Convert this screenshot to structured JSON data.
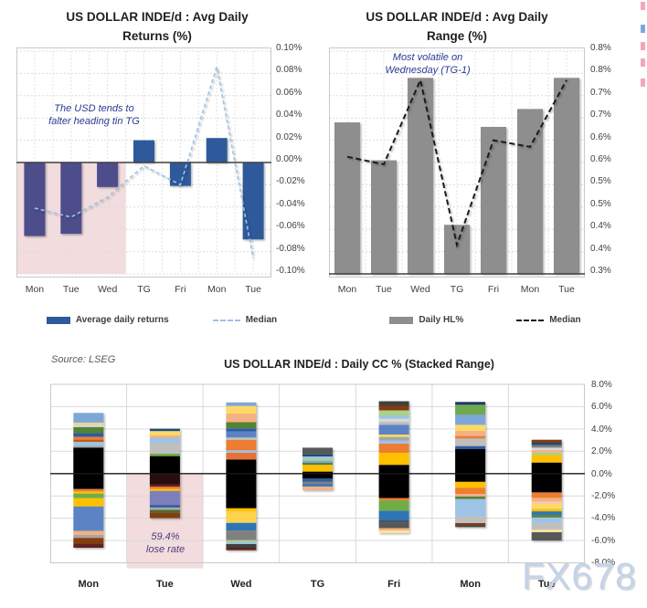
{
  "page": {
    "watermark": "FX678",
    "source_note": "Source: LSEG",
    "artifact_marks": [
      {
        "y": 2,
        "color": "#f2a7be"
      },
      {
        "y": 27,
        "color": "#7fa8d9"
      },
      {
        "y": 46,
        "color": "#f2a7be"
      },
      {
        "y": 64,
        "color": "#f2a7be"
      },
      {
        "y": 86,
        "color": "#f2a7be"
      }
    ]
  },
  "chart_data": [
    {
      "type": "bar",
      "title": "US DOLLAR INDE/d : Avg Daily Returns (%)",
      "title_lines": [
        "US DOLLAR INDE/d : Avg Daily",
        "Returns (%)"
      ],
      "categories": [
        "Mon",
        "Tue",
        "Wed",
        "TG",
        "Fri",
        "Mon",
        "Tue"
      ],
      "series": [
        {
          "name": "Average daily returns",
          "type": "bar",
          "color": "#2d5a9b",
          "highlight_color": "#4e4d8c",
          "values": [
            -0.066,
            -0.064,
            -0.022,
            0.02,
            -0.021,
            0.022,
            -0.069
          ]
        },
        {
          "name": "Median",
          "type": "line",
          "color": "#9dc3e6",
          "values": [
            -0.041,
            -0.049,
            -0.031,
            -0.003,
            -0.02,
            0.086,
            -0.086
          ]
        }
      ],
      "ylim": [
        -0.1,
        0.1
      ],
      "tick_labels": [
        "0.10%",
        "0.08%",
        "0.06%",
        "0.04%",
        "0.02%",
        "0.00%",
        "-0.02%",
        "-0.04%",
        "-0.06%",
        "-0.08%",
        "-0.10%"
      ],
      "grid": true,
      "legend_position": "bottom",
      "annotation": {
        "lines": [
          "The USD tends to",
          "falter heading tin TG"
        ]
      },
      "highlight": {
        "categories": [
          "Mon",
          "Tue",
          "Wed"
        ],
        "region": "below zero",
        "color": "#f2dcde"
      },
      "legend": [
        {
          "label": "Average daily returns",
          "swatch": "bar",
          "color": "#2d5a9b"
        },
        {
          "label": "Median",
          "swatch": "dash",
          "color": "#9dc3e6"
        }
      ]
    },
    {
      "type": "bar",
      "title": "US DOLLAR INDE/d : Avg Daily Range (%)",
      "title_lines": [
        "US DOLLAR INDE/d : Avg Daily",
        "Range (%)"
      ],
      "categories": [
        "Mon",
        "Tue",
        "Wed",
        "TG",
        "Fri",
        "Mon",
        "Tue"
      ],
      "series": [
        {
          "name": "Daily HL%",
          "type": "bar",
          "color": "#8e8e8e",
          "values": [
            0.64,
            0.555,
            0.74,
            0.41,
            0.63,
            0.67,
            0.74
          ]
        },
        {
          "name": "Median",
          "type": "line",
          "color": "#1a1a1a",
          "values": [
            0.563,
            0.546,
            0.735,
            0.365,
            0.6,
            0.585,
            0.735
          ]
        }
      ],
      "ylim": [
        0.3,
        0.8
      ],
      "tick_labels": [
        "0.8%",
        "0.8%",
        "0.7%",
        "0.7%",
        "0.6%",
        "0.6%",
        "0.5%",
        "0.5%",
        "0.4%",
        "0.4%",
        "0.3%"
      ],
      "grid": true,
      "legend_position": "bottom",
      "annotation": {
        "lines": [
          "Most volatile on",
          "Wednesday (TG-1)"
        ]
      },
      "legend": [
        {
          "label": "Daily HL%",
          "swatch": "bar",
          "color": "#8e8e8e"
        },
        {
          "label": "Median",
          "swatch": "dash",
          "color": "#1a1a1a"
        }
      ]
    },
    {
      "type": "bar",
      "subtype": "stacked-range",
      "title": "US DOLLAR INDE/d : Daily CC % (Stacked Range)",
      "categories": [
        "Mon",
        "Tue",
        "Wed",
        "TG",
        "Fri",
        "Mon",
        "Tue"
      ],
      "ylim": [
        -8,
        8
      ],
      "tick_labels": [
        "8.0%",
        "6.0%",
        "4.0%",
        "2.0%",
        "0.0%",
        "-2.0%",
        "-4.0%",
        "-6.0%",
        "-8.0%"
      ],
      "grid": true,
      "annotation": {
        "lines": [
          "59.4%",
          "lose rate"
        ]
      },
      "highlight": {
        "categories": [
          "Tue"
        ],
        "region": "below zero",
        "color": "#f2dcde"
      },
      "bars": [
        {
          "label": "Mon",
          "top": 5.44,
          "bottom": -6.65,
          "segments": [
            [
              "#7da7d9",
              0.87
            ],
            [
              "#e6d690",
              0.22
            ],
            [
              "#d9d9d9",
              0.19
            ],
            [
              "#548235",
              0.55
            ],
            [
              "#2e5c9e",
              0.33
            ],
            [
              "#ed7d31",
              0.25
            ],
            [
              "#c55a11",
              0.19
            ],
            [
              "#9dc3e6",
              0.36
            ],
            [
              "#a6a6a6",
              0.16
            ],
            [
              "#000000",
              3.71
            ],
            [
              "#ed7d31",
              0.22
            ],
            [
              "#ffc000",
              0.19
            ],
            [
              "#70ad47",
              0.41
            ],
            [
              "#ffc000",
              0.74
            ],
            [
              "#5b84c4",
              2.19
            ],
            [
              "#f4b183",
              0.36
            ],
            [
              "#a6a6a6",
              0.27
            ],
            [
              "#843c0c",
              0.52
            ],
            [
              "#632423",
              0.36
            ]
          ]
        },
        {
          "label": "Tue",
          "top": 4.02,
          "bottom": -3.99,
          "segments": [
            [
              "#1f4e79",
              0.22
            ],
            [
              "#ffd966",
              0.38
            ],
            [
              "#f4b183",
              0.22
            ],
            [
              "#9dc3e6",
              0.44
            ],
            [
              "#bfbfbf",
              0.98
            ],
            [
              "#70ad47",
              0.22
            ],
            [
              "#000000",
              1.56
            ],
            [
              "#2b0b0b",
              0.96
            ],
            [
              "#632423",
              0.22
            ],
            [
              "#ed7d31",
              0.19
            ],
            [
              "#ffc000",
              0.19
            ],
            [
              "#7c7fbc",
              1.26
            ],
            [
              "#2e5c9e",
              0.22
            ],
            [
              "#a6a6a6",
              0.22
            ],
            [
              "#4e6b2f",
              0.27
            ],
            [
              "#843c0c",
              0.46
            ]
          ]
        },
        {
          "label": "Wed",
          "top": 6.38,
          "bottom": -6.87,
          "segments": [
            [
              "#7da7d9",
              0.33
            ],
            [
              "#ffd966",
              0.68
            ],
            [
              "#f4b183",
              0.77
            ],
            [
              "#548235",
              0.55
            ],
            [
              "#2e5c9e",
              0.27
            ],
            [
              "#5b84c4",
              0.55
            ],
            [
              "#bfbfbf",
              0.22
            ],
            [
              "#ed7d31",
              0.93
            ],
            [
              "#9dc3e6",
              0.22
            ],
            [
              "#e97132",
              0.6
            ],
            [
              "#000000",
              4.37
            ],
            [
              "#ffc000",
              0.27
            ],
            [
              "#ffd34d",
              1.04
            ],
            [
              "#2e75b6",
              0.68
            ],
            [
              "#808080",
              0.87
            ],
            [
              "#a9d18e",
              0.19
            ],
            [
              "#9dc3e6",
              0.16
            ],
            [
              "#404040",
              0.33
            ],
            [
              "#632423",
              0.22
            ]
          ]
        },
        {
          "label": "TG",
          "top": 2.32,
          "bottom": -1.5,
          "segments": [
            [
              "#595959",
              0.6
            ],
            [
              "#1f4e79",
              0.19
            ],
            [
              "#9dc3e6",
              0.19
            ],
            [
              "#a9d18e",
              0.19
            ],
            [
              "#7da7d9",
              0.19
            ],
            [
              "#548235",
              0.19
            ],
            [
              "#ffc000",
              0.6
            ],
            [
              "#000000",
              0.62
            ],
            [
              "#2e5c9e",
              0.27
            ],
            [
              "#808080",
              0.22
            ],
            [
              "#2e75b6",
              0.22
            ],
            [
              "#f4b183",
              0.33
            ]
          ]
        },
        {
          "label": "Fri",
          "top": 6.49,
          "bottom": -5.33,
          "segments": [
            [
              "#404040",
              0.41
            ],
            [
              "#843c0c",
              0.41
            ],
            [
              "#a9d18e",
              0.49
            ],
            [
              "#9dc3e6",
              0.27
            ],
            [
              "#d9d9d9",
              0.27
            ],
            [
              "#bfbfbf",
              0.27
            ],
            [
              "#5b84c4",
              0.87
            ],
            [
              "#ffd966",
              0.22
            ],
            [
              "#a6a6a6",
              0.33
            ],
            [
              "#9dc3e6",
              0.27
            ],
            [
              "#ed7d31",
              0.82
            ],
            [
              "#ffc000",
              1.09
            ],
            [
              "#000000",
              2.96
            ],
            [
              "#ed7d31",
              0.22
            ],
            [
              "#70ad47",
              0.93
            ],
            [
              "#2e75b6",
              0.82
            ],
            [
              "#44546a",
              0.27
            ],
            [
              "#595959",
              0.46
            ],
            [
              "#f4b183",
              0.22
            ],
            [
              "#ffe699",
              0.22
            ]
          ]
        },
        {
          "label": "Mon",
          "top": 6.42,
          "bottom": -4.79,
          "segments": [
            [
              "#1f3864",
              0.25
            ],
            [
              "#6fa84f",
              0.9
            ],
            [
              "#7da7d9",
              0.9
            ],
            [
              "#ffd966",
              0.55
            ],
            [
              "#f4b183",
              0.46
            ],
            [
              "#ed7d31",
              0.22
            ],
            [
              "#bfbfbf",
              0.68
            ],
            [
              "#2e5c9e",
              0.27
            ],
            [
              "#000000",
              2.93
            ],
            [
              "#ffc000",
              0.55
            ],
            [
              "#ed7d31",
              0.55
            ],
            [
              "#f4b183",
              0.22
            ],
            [
              "#548235",
              0.22
            ],
            [
              "#9dc3e6",
              1.56
            ],
            [
              "#bfbfbf",
              0.6
            ],
            [
              "#843c0c",
              0.19
            ],
            [
              "#404040",
              0.16
            ]
          ]
        },
        {
          "label": "Tue",
          "top": 3.03,
          "bottom": -5.97,
          "segments": [
            [
              "#843c0c",
              0.27
            ],
            [
              "#1f4e79",
              0.22
            ],
            [
              "#808080",
              0.22
            ],
            [
              "#d9d9d9",
              0.22
            ],
            [
              "#f4b183",
              0.22
            ],
            [
              "#a9d18e",
              0.22
            ],
            [
              "#ffc000",
              0.68
            ],
            [
              "#000000",
              2.67
            ],
            [
              "#ed7d31",
              0.49
            ],
            [
              "#f4b183",
              0.33
            ],
            [
              "#f8cbad",
              0.22
            ],
            [
              "#ffd966",
              0.44
            ],
            [
              "#ffc000",
              0.22
            ],
            [
              "#2e75b6",
              0.33
            ],
            [
              "#548235",
              0.22
            ],
            [
              "#9dc3e6",
              0.44
            ],
            [
              "#bfbfbf",
              0.66
            ],
            [
              "#ffe699",
              0.22
            ],
            [
              "#595959",
              0.74
            ]
          ]
        }
      ]
    }
  ]
}
